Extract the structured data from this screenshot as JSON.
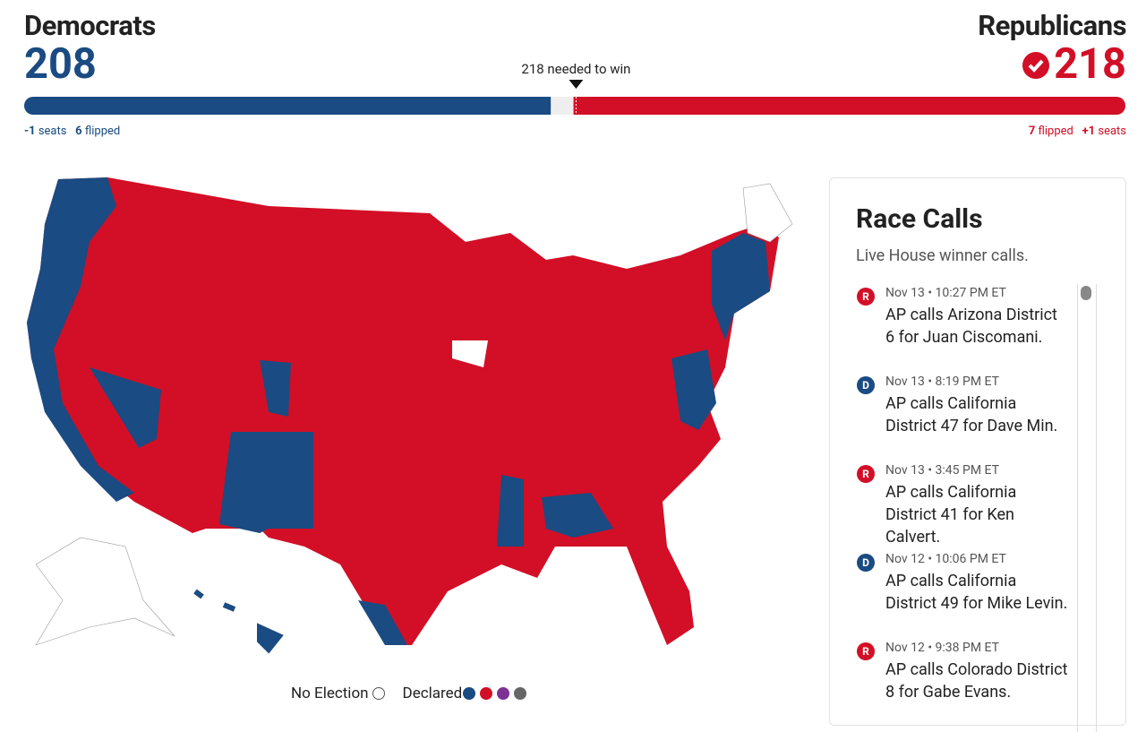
{
  "democrats": {
    "name": "Democrats",
    "seats": 208,
    "seat_change": "-1",
    "seat_change_label": "seats",
    "flipped": 6,
    "flipped_label": "flipped"
  },
  "republicans": {
    "name": "Republicans",
    "seats": 218,
    "seat_change": "+1",
    "seat_change_label": "seats",
    "flipped": 7,
    "flipped_label": "flipped"
  },
  "seat_bar": {
    "xlim": [
      0,
      435
    ],
    "majority": {
      "value": 218,
      "label": "218 needed to win"
    },
    "dem_color": "#1a4b82",
    "rep_color": "#d20f26"
  },
  "legend": {
    "no_election": "No Election",
    "declared": "Declared",
    "declared_colors": [
      "#1a4b82",
      "#d20f26",
      "#7b3294",
      "#666666"
    ]
  },
  "race_calls": {
    "title": "Race Calls",
    "subtitle": "Live House winner calls.",
    "items": [
      {
        "party": "R",
        "time": "Nov 13 • 10:27 PM ET",
        "text": "AP calls Arizona District 6 for Juan Ciscomani."
      },
      {
        "party": "D",
        "time": "Nov 13 • 8:19 PM ET",
        "text": "AP calls California District 47 for Dave Min."
      },
      {
        "party": "R",
        "time": "Nov 13 • 3:45 PM ET",
        "text": "AP calls California District 41 for Ken Calvert."
      },
      {
        "party": "D",
        "time": "Nov 12 • 10:06 PM ET",
        "text": "AP calls California District 49 for Mike Levin."
      },
      {
        "party": "R",
        "time": "Nov 12 • 9:38 PM ET",
        "text": "AP calls Colorado District 8 for Gabe Evans."
      }
    ]
  }
}
